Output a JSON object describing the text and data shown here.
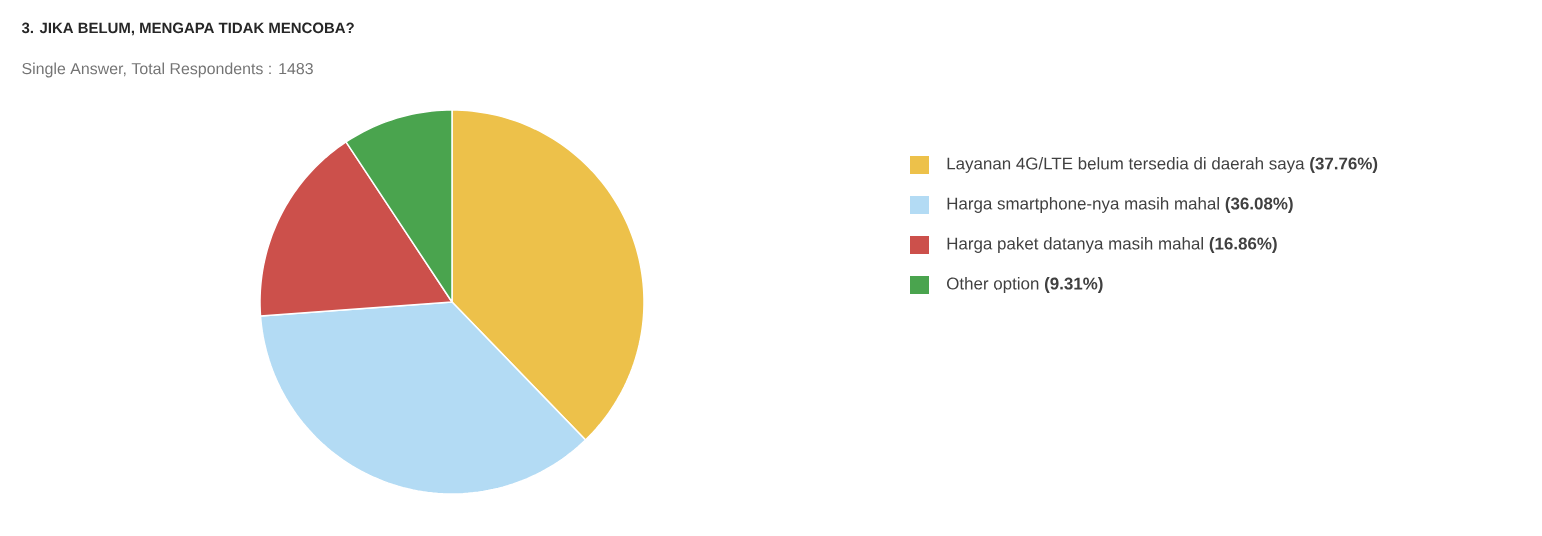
{
  "chart_data": {
    "type": "pie",
    "title": "3. JIKA BELUM, MENGAPA TIDAK MENCOBA?",
    "subtitle": "Single Answer, Total Respondents : 1483",
    "categories": [
      "Layanan 4G/LTE belum tersedia di daerah saya",
      "Harga smartphone-nya masih mahal",
      "Harga paket datanya masih mahal",
      "Other option"
    ],
    "values": [
      37.76,
      36.08,
      16.86,
      9.31
    ],
    "value_labels": [
      "(37.76%)",
      "(36.08%)",
      "(16.86%)",
      "(9.31%)"
    ],
    "colors": [
      "#edc14a",
      "#b3dbf4",
      "#cc504b",
      "#4aa44e"
    ],
    "legend": "right"
  }
}
